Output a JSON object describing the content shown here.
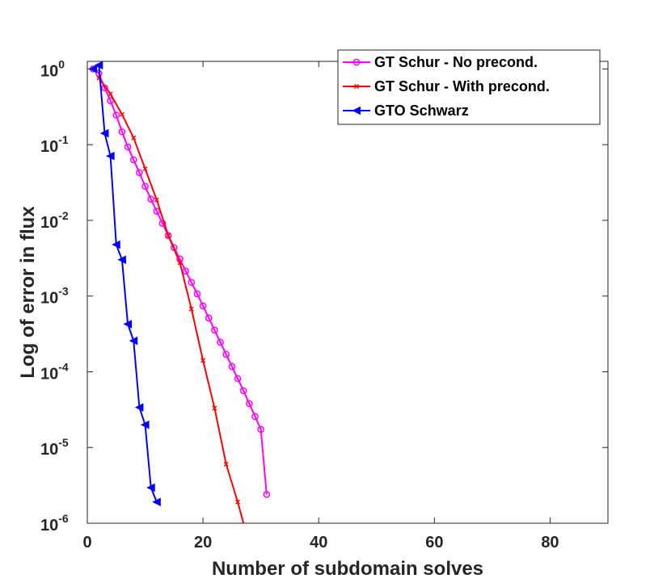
{
  "chart_data": {
    "type": "line",
    "title": "",
    "xlabel": "Number of subdomain solves",
    "ylabel": "Log of error in flux",
    "xlim": [
      0,
      90
    ],
    "ylim_log10": [
      -6,
      0.1
    ],
    "xticks": [
      0,
      20,
      40,
      60,
      80
    ],
    "xtick_labels": [
      "0",
      "20",
      "40",
      "60",
      "80"
    ],
    "yticks_log10": [
      0,
      -1,
      -2,
      -3,
      -4,
      -5,
      -6
    ],
    "ytick_labels": [
      {
        "base": "10",
        "exp": "0"
      },
      {
        "base": "10",
        "exp": "-1"
      },
      {
        "base": "10",
        "exp": "-2"
      },
      {
        "base": "10",
        "exp": "-3"
      },
      {
        "base": "10",
        "exp": "-4"
      },
      {
        "base": "10",
        "exp": "-5"
      },
      {
        "base": "10",
        "exp": "-6"
      }
    ],
    "legend_position": "top-right",
    "series": [
      {
        "name": "GT Schur - No precond.",
        "color": "#ff00ff",
        "marker": "circle",
        "x": [
          1,
          2,
          3,
          4,
          5,
          6,
          7,
          8,
          9,
          10,
          11,
          12,
          13,
          14,
          15,
          16,
          17,
          18,
          19,
          20,
          21,
          22,
          23,
          24,
          25,
          26,
          27,
          28,
          29,
          30,
          31
        ],
        "log10_y": [
          0,
          -0.06,
          -0.25,
          -0.42,
          -0.61,
          -0.83,
          -1.03,
          -1.2,
          -1.37,
          -1.55,
          -1.72,
          -1.88,
          -2.04,
          -2.2,
          -2.36,
          -2.51,
          -2.67,
          -2.82,
          -2.97,
          -3.13,
          -3.29,
          -3.45,
          -3.61,
          -3.77,
          -3.93,
          -4.09,
          -4.25,
          -4.42,
          -4.59,
          -4.76,
          -5.62
        ]
      },
      {
        "name": "GT Schur - With precond.",
        "color": "#ff0000",
        "marker": "x",
        "x": [
          2,
          4,
          6,
          8,
          10,
          12,
          14,
          16,
          18,
          20,
          22,
          24,
          26,
          27
        ],
        "log10_y": [
          -0.12,
          -0.33,
          -0.6,
          -0.91,
          -1.32,
          -1.73,
          -2.2,
          -2.56,
          -3.17,
          -3.85,
          -4.48,
          -5.22,
          -5.72,
          -6.0
        ],
        "note": "Final point clipped at plot bottom"
      },
      {
        "name": "GTO Schwarz",
        "color": "#0000ff",
        "marker": "triangle-left",
        "x": [
          1,
          2,
          3,
          4,
          5,
          6,
          7,
          8,
          9,
          10,
          11,
          12
        ],
        "log10_y": [
          0,
          0.05,
          -0.85,
          -1.15,
          -2.32,
          -2.52,
          -3.37,
          -3.59,
          -4.47,
          -4.7,
          -5.53,
          -5.72
        ]
      }
    ]
  }
}
